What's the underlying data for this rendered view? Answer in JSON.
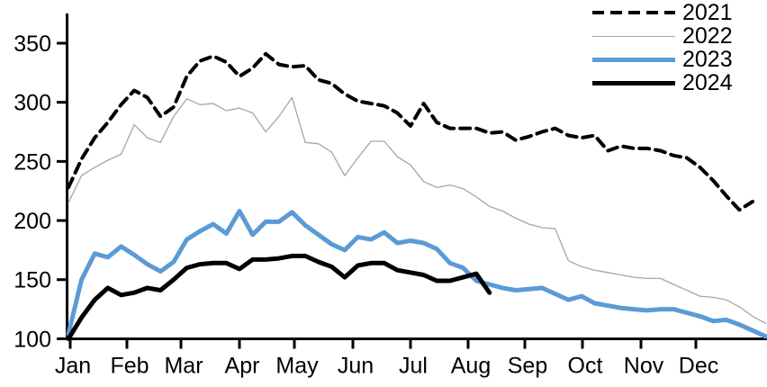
{
  "chart_data": {
    "type": "line",
    "title": "",
    "xlabel": "",
    "ylabel": "",
    "x_unit": "week-of-year",
    "x_tick_labels": [
      "Jan",
      "Feb",
      "Mar",
      "Apr",
      "May",
      "Jun",
      "Jul",
      "Aug",
      "Sep",
      "Oct",
      "Nov",
      "Dec"
    ],
    "y_tick_labels": [
      "100",
      "150",
      "200",
      "250",
      "300",
      "350"
    ],
    "y_tick_values": [
      100,
      150,
      200,
      250,
      300,
      350
    ],
    "ylim": [
      100,
      350
    ],
    "grid": false,
    "legend_position": "top-right",
    "axis_color": "#000000",
    "background_color": "#ffffff",
    "series": [
      {
        "name": "2021",
        "color": "#000000",
        "style": "dashed",
        "width": 4,
        "values": [
          228,
          252,
          270,
          283,
          298,
          310,
          304,
          288,
          296,
          322,
          335,
          339,
          334,
          322,
          329,
          341,
          332,
          330,
          331,
          319,
          316,
          307,
          301,
          299,
          297,
          291,
          280,
          299,
          283,
          278,
          278,
          278,
          274,
          275,
          268,
          271,
          275,
          278,
          272,
          270,
          272,
          259,
          263,
          261,
          261,
          259,
          255,
          253,
          245,
          234,
          221,
          209,
          216
        ]
      },
      {
        "name": "2022",
        "color": "#A6A6A6",
        "style": "solid",
        "width": 1.3,
        "values": [
          215,
          238,
          245,
          251,
          256,
          281,
          270,
          266,
          288,
          303,
          298,
          299,
          293,
          295,
          291,
          275,
          288,
          304,
          266,
          265,
          258,
          238,
          253,
          267,
          267,
          254,
          247,
          233,
          228,
          230,
          227,
          220,
          212,
          208,
          202,
          197,
          194,
          193,
          166,
          161,
          158,
          156,
          154,
          152,
          151,
          151,
          146,
          141,
          136,
          135,
          133,
          127,
          119,
          113
        ]
      },
      {
        "name": "2023",
        "color": "#5B9BD5",
        "style": "solid",
        "width": 5,
        "values": [
          104,
          150,
          172,
          169,
          178,
          171,
          163,
          157,
          165,
          184,
          191,
          197,
          189,
          208,
          188,
          199,
          199,
          207,
          196,
          188,
          180,
          175,
          186,
          184,
          190,
          181,
          183,
          181,
          176,
          164,
          160,
          149,
          146,
          143,
          141,
          142,
          143,
          138,
          133,
          136,
          130,
          128,
          126,
          125,
          124,
          125,
          125,
          122,
          119,
          115,
          116,
          112,
          107,
          102
        ]
      },
      {
        "name": "2024",
        "color": "#000000",
        "style": "solid",
        "width": 5,
        "values": [
          100,
          118,
          133,
          143,
          137,
          139,
          143,
          141,
          150,
          160,
          163,
          164,
          164,
          159,
          167,
          167,
          168,
          170,
          170,
          165,
          161,
          152,
          162,
          164,
          164,
          158,
          156,
          154,
          149,
          149,
          152,
          155,
          139
        ]
      }
    ]
  }
}
